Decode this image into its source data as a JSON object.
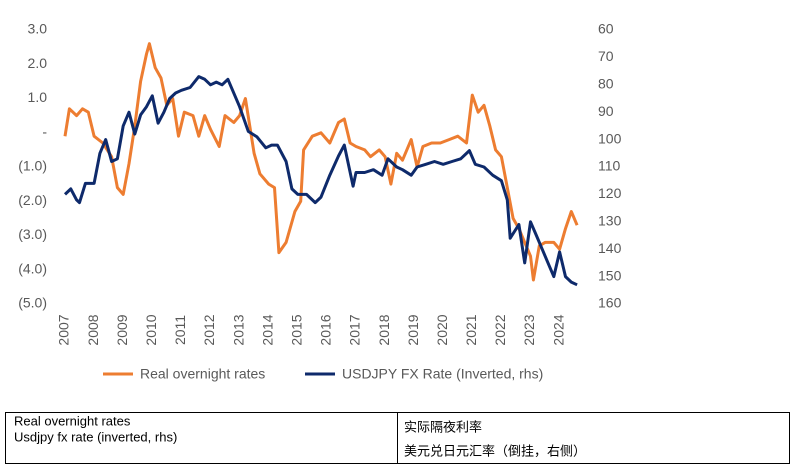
{
  "chart_data": {
    "type": "line",
    "xlim": [
      2007,
      2024.7
    ],
    "xticks": [
      2007,
      2008,
      2009,
      2010,
      2011,
      2012,
      2013,
      2014,
      2015,
      2016,
      2017,
      2018,
      2019,
      2020,
      2021,
      2022,
      2023,
      2024
    ],
    "ylim": [
      -5,
      3
    ],
    "yticks": [
      {
        "value": 3,
        "label": "3.0"
      },
      {
        "value": 2,
        "label": "2.0"
      },
      {
        "value": 1,
        "label": "1.0"
      },
      {
        "value": 0,
        "label": "-"
      },
      {
        "value": -1,
        "label": "(1.0)"
      },
      {
        "value": -2,
        "label": "(2.0)"
      },
      {
        "value": -3,
        "label": "(3.0)"
      },
      {
        "value": -4,
        "label": "(4.0)"
      },
      {
        "value": -5,
        "label": "(5.0)"
      }
    ],
    "y2lim": [
      60,
      160
    ],
    "y2_inverted": true,
    "y2ticks": [
      60,
      70,
      80,
      90,
      100,
      110,
      120,
      130,
      140,
      150,
      160
    ],
    "grid": false,
    "legend": "bottom",
    "series": [
      {
        "name": "Real overnight rates",
        "color": "#ed7d31",
        "x": [
          2007.0,
          2007.15,
          2007.4,
          2007.6,
          2007.8,
          2008.0,
          2008.3,
          2008.6,
          2008.8,
          2009.0,
          2009.2,
          2009.4,
          2009.6,
          2009.8,
          2009.9,
          2010.1,
          2010.3,
          2010.5,
          2010.7,
          2010.9,
          2011.1,
          2011.4,
          2011.6,
          2011.8,
          2012.0,
          2012.3,
          2012.5,
          2012.8,
          2013.0,
          2013.2,
          2013.5,
          2013.7,
          2014.0,
          2014.2,
          2014.35,
          2014.6,
          2014.9,
          2015.1,
          2015.2,
          2015.5,
          2015.8,
          2016.1,
          2016.4,
          2016.6,
          2016.8,
          2017.0,
          2017.3,
          2017.5,
          2017.8,
          2018.0,
          2018.2,
          2018.4,
          2018.6,
          2018.9,
          2019.1,
          2019.3,
          2019.6,
          2019.9,
          2020.2,
          2020.5,
          2020.8,
          2021.0,
          2021.2,
          2021.4,
          2021.6,
          2021.8,
          2022.0,
          2022.2,
          2022.4,
          2022.6,
          2022.8,
          2023.0,
          2023.1,
          2023.3,
          2023.5,
          2023.8,
          2024.0,
          2024.2,
          2024.4,
          2024.6
        ],
        "values": [
          -0.1,
          0.7,
          0.5,
          0.7,
          0.6,
          -0.1,
          -0.3,
          -0.7,
          -1.6,
          -1.8,
          -0.9,
          0.2,
          1.5,
          2.3,
          2.6,
          1.9,
          1.6,
          0.8,
          1.0,
          -0.1,
          0.6,
          0.5,
          -0.1,
          0.5,
          0.1,
          -0.4,
          0.5,
          0.3,
          0.5,
          1.0,
          -0.6,
          -1.2,
          -1.5,
          -1.6,
          -3.5,
          -3.2,
          -2.3,
          -2.0,
          -0.5,
          -0.1,
          0,
          -0.3,
          0.3,
          0.4,
          -0.3,
          -0.4,
          -0.5,
          -0.7,
          -0.5,
          -0.7,
          -1.5,
          -0.6,
          -0.8,
          -0.2,
          -1.0,
          -0.4,
          -0.3,
          -0.3,
          -0.2,
          -0.1,
          -0.3,
          1.1,
          0.6,
          0.8,
          0.2,
          -0.5,
          -0.7,
          -1.6,
          -2.5,
          -2.8,
          -3.2,
          -3.6,
          -4.3,
          -3.3,
          -3.2,
          -3.2,
          -3.4,
          -2.8,
          -2.3,
          -2.7
        ]
      },
      {
        "name": "USDJPY FX Rate (Inverted, rhs)",
        "color": "#0e2a6b",
        "axis": "y2",
        "x": [
          2007.0,
          2007.2,
          2007.4,
          2007.5,
          2007.7,
          2008.0,
          2008.2,
          2008.4,
          2008.6,
          2008.8,
          2009.0,
          2009.2,
          2009.4,
          2009.6,
          2009.8,
          2010.0,
          2010.2,
          2010.4,
          2010.6,
          2010.8,
          2011.0,
          2011.3,
          2011.6,
          2011.8,
          2012.0,
          2012.2,
          2012.4,
          2012.6,
          2013.0,
          2013.3,
          2013.6,
          2013.9,
          2014.1,
          2014.3,
          2014.6,
          2014.8,
          2015.0,
          2015.3,
          2015.6,
          2015.8,
          2016.1,
          2016.4,
          2016.6,
          2016.9,
          2017.0,
          2017.3,
          2017.6,
          2017.9,
          2018.1,
          2018.4,
          2018.6,
          2018.9,
          2019.1,
          2019.4,
          2019.7,
          2020.0,
          2020.3,
          2020.6,
          2020.9,
          2021.1,
          2021.4,
          2021.7,
          2022.0,
          2022.2,
          2022.3,
          2022.6,
          2022.8,
          2023.0,
          2023.2,
          2023.4,
          2023.6,
          2023.8,
          2024.0,
          2024.2,
          2024.4,
          2024.6
        ],
        "values": [
          120,
          118,
          122,
          123,
          116,
          116,
          105,
          100,
          108,
          107,
          95,
          90,
          98,
          91,
          88,
          84,
          94,
          90,
          85,
          83,
          82,
          81,
          77,
          78,
          80,
          79,
          80,
          78,
          88,
          97,
          99,
          103,
          102,
          102,
          108,
          118,
          120,
          120,
          123,
          121,
          113,
          106,
          102,
          117,
          112,
          112,
          111,
          113,
          107,
          110,
          111,
          113,
          110,
          109,
          108,
          109,
          108,
          107,
          104,
          109,
          110,
          113,
          115,
          122,
          136,
          131,
          145,
          130,
          135,
          140,
          145,
          150,
          141,
          150,
          152,
          153
        ]
      }
    ]
  },
  "table": {
    "left": [
      "Real overnight rates",
      "Usdjpy fx rate (inverted, rhs)"
    ],
    "right": [
      "实际隔夜利率",
      "美元兑日元汇率（倒挂，右侧）"
    ]
  }
}
